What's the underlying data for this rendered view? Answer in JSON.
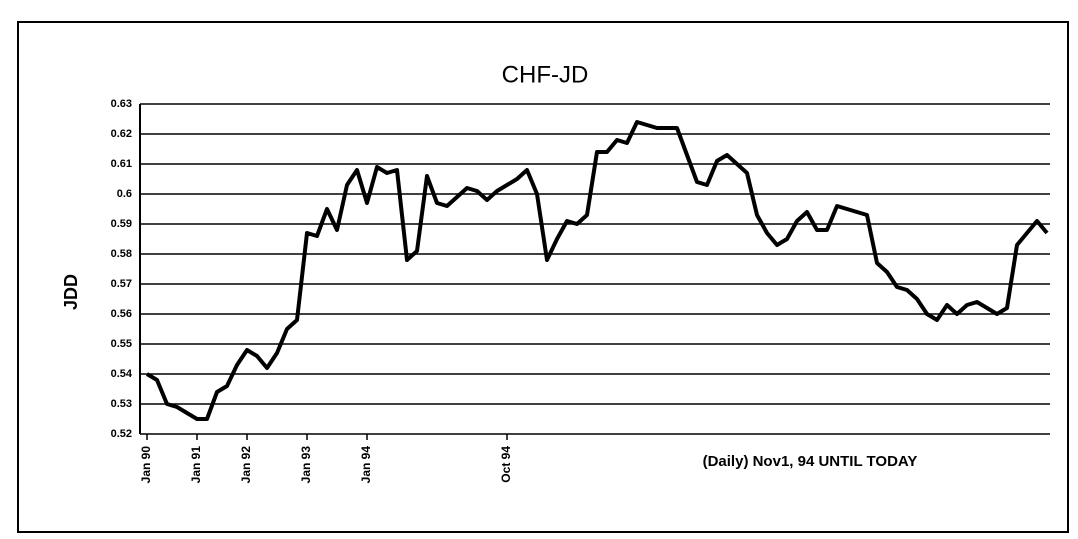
{
  "chart_data": {
    "type": "line",
    "title": "CHF-JD",
    "y_label": "JDD",
    "annotation": "(Daily) Nov1, 94 UNTIL TODAY",
    "categories": [
      "Jan 90",
      null,
      null,
      null,
      null,
      "Jan 91",
      null,
      null,
      null,
      null,
      "Jan 92",
      null,
      null,
      null,
      null,
      null,
      "Jan 93",
      null,
      null,
      null,
      null,
      null,
      "Jan 94",
      null,
      null,
      null,
      null,
      null,
      null,
      null,
      null,
      null,
      null,
      null,
      null,
      null,
      "Oct 94",
      null,
      null,
      null,
      null,
      null,
      null,
      null,
      null,
      null,
      null,
      null,
      null,
      null,
      null,
      null,
      null,
      null,
      null,
      null,
      null,
      null,
      null,
      null,
      null,
      null,
      null,
      null,
      null,
      null,
      null,
      null,
      null,
      null,
      null,
      null,
      null,
      null,
      null,
      null,
      null,
      null,
      null,
      null,
      null,
      null,
      null,
      null,
      null,
      null,
      null,
      null,
      null,
      null,
      null
    ],
    "series": [
      {
        "name": "CHF-JD",
        "color": "#000000",
        "values": [
          0.54,
          0.538,
          0.53,
          0.529,
          0.527,
          0.525,
          0.525,
          0.534,
          0.536,
          0.543,
          0.548,
          0.546,
          0.542,
          0.547,
          0.555,
          0.558,
          0.587,
          0.586,
          0.595,
          0.588,
          0.603,
          0.608,
          0.597,
          0.609,
          0.607,
          0.608,
          0.578,
          0.581,
          0.606,
          0.597,
          0.596,
          0.599,
          0.602,
          0.601,
          0.598,
          0.601,
          0.603,
          0.605,
          0.608,
          0.6,
          0.578,
          0.585,
          0.591,
          0.59,
          0.593,
          0.614,
          0.614,
          0.618,
          0.617,
          0.624,
          0.623,
          0.622,
          0.622,
          0.622,
          0.613,
          0.604,
          0.603,
          0.611,
          0.613,
          0.61,
          0.607,
          0.593,
          0.587,
          0.583,
          0.585,
          0.591,
          0.594,
          0.588,
          0.588,
          0.596,
          0.595,
          0.594,
          0.593,
          0.577,
          0.574,
          0.569,
          0.568,
          0.565,
          0.56,
          0.558,
          0.563,
          0.56,
          0.563,
          0.564,
          0.562,
          0.56,
          0.562,
          0.583,
          0.587,
          0.591,
          0.587
        ]
      }
    ],
    "ylim": [
      0.52,
      0.63
    ],
    "yticks": [
      0.52,
      0.53,
      0.54,
      0.55,
      0.56,
      0.57,
      0.58,
      0.59,
      0.6,
      0.61,
      0.62,
      0.63
    ],
    "grid": true
  }
}
